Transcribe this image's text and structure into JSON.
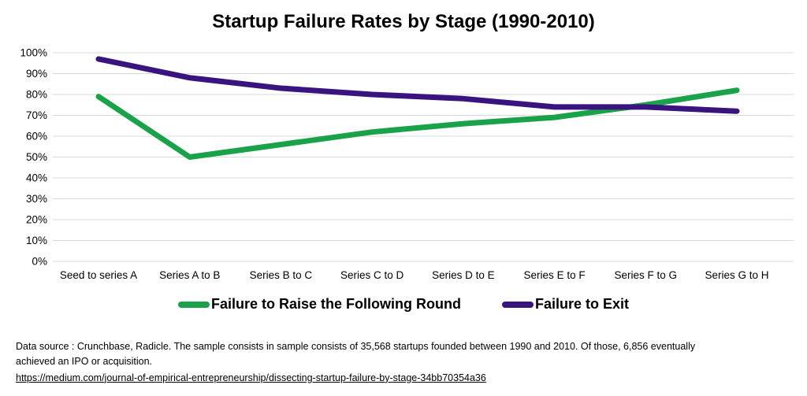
{
  "title": "Startup Failure Rates by Stage (1990-2010)",
  "chart_data": {
    "type": "line",
    "title": "Startup Failure Rates by Stage (1990-2010)",
    "categories": [
      "Seed to series A",
      "Series A to B",
      "Series B to C",
      "Series C to D",
      "Series D to E",
      "Series E to F",
      "Series F to G",
      "Series G to H"
    ],
    "series": [
      {
        "name": "Failure to Raise the Following Round",
        "color": "#1aa24a",
        "values": [
          79,
          50,
          56,
          62,
          66,
          69,
          75,
          82
        ]
      },
      {
        "name": "Failure to Exit",
        "color": "#39137e",
        "values": [
          97,
          88,
          83,
          80,
          78,
          74,
          74,
          72
        ]
      }
    ],
    "xlabel": "",
    "ylabel": "",
    "ylim": [
      0,
      100
    ],
    "ytick_step": 10,
    "ytick_suffix": "%",
    "grid": true,
    "gridline_color": "#d9d9d9",
    "legend_position": "bottom"
  },
  "footer": {
    "source_note": "Data source : Crunchbase, Radicle. The sample consists in sample consists of 35,568 startups founded between 1990 and 2010. Of those, 6,856 eventually\nachieved an IPO or acquisition.",
    "link": "https://medium.com/journal-of-empirical-entrepreneurship/dissecting-startup-failure-by-stage-34bb70354a36"
  }
}
